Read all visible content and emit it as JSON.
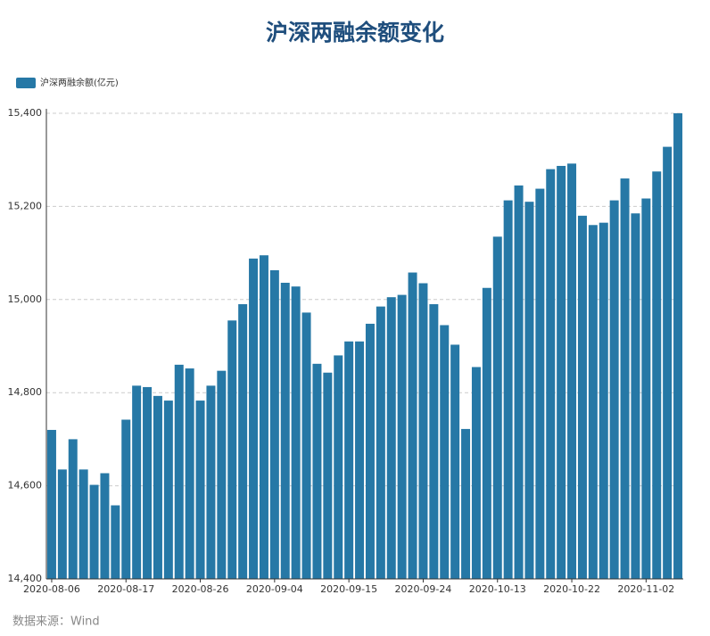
{
  "chart_data": {
    "type": "bar",
    "title": "沪深两融余额变化",
    "series": [
      {
        "name": "沪深两融余额(亿元)",
        "color": "#2678a6",
        "values": [
          14720,
          14635,
          14700,
          14635,
          14602,
          14627,
          14558,
          14742,
          14815,
          14812,
          14793,
          14783,
          14860,
          14852,
          14783,
          14815,
          14847,
          14955,
          14990,
          15088,
          15095,
          15063,
          15036,
          15028,
          14972,
          14862,
          14843,
          14880,
          14910,
          14910,
          14948,
          14985,
          15005,
          15010,
          15058,
          15035,
          14990,
          14945,
          14903,
          14722,
          14855,
          15025,
          15135,
          15213,
          15245,
          15210,
          15238,
          15280,
          15287,
          15292,
          15180,
          15160,
          15165,
          15213,
          15260,
          15185,
          15217,
          15275,
          15328,
          15400
        ]
      }
    ],
    "categories": [
      "2020-08-06",
      null,
      null,
      null,
      null,
      null,
      null,
      "2020-08-17",
      null,
      null,
      null,
      null,
      null,
      null,
      "2020-08-26",
      null,
      null,
      null,
      null,
      null,
      null,
      "2020-09-04",
      null,
      null,
      null,
      null,
      null,
      null,
      "2020-09-15",
      null,
      null,
      null,
      null,
      null,
      null,
      "2020-09-24",
      null,
      null,
      null,
      null,
      null,
      null,
      "2020-10-13",
      null,
      null,
      null,
      null,
      null,
      null,
      "2020-10-22",
      null,
      null,
      null,
      null,
      null,
      null,
      "2020-11-02",
      null,
      null,
      null
    ],
    "ylim": [
      14400,
      15400
    ],
    "yticks": [
      {
        "value": 14400,
        "label": "14,400"
      },
      {
        "value": 14600,
        "label": "14,600"
      },
      {
        "value": 14800,
        "label": "14,800"
      },
      {
        "value": 15000,
        "label": "15,000"
      },
      {
        "value": 15200,
        "label": "15,200"
      },
      {
        "value": 15400,
        "label": "15,400"
      }
    ],
    "grid": true,
    "legend": "top-left",
    "source": "数据来源：Wind"
  }
}
